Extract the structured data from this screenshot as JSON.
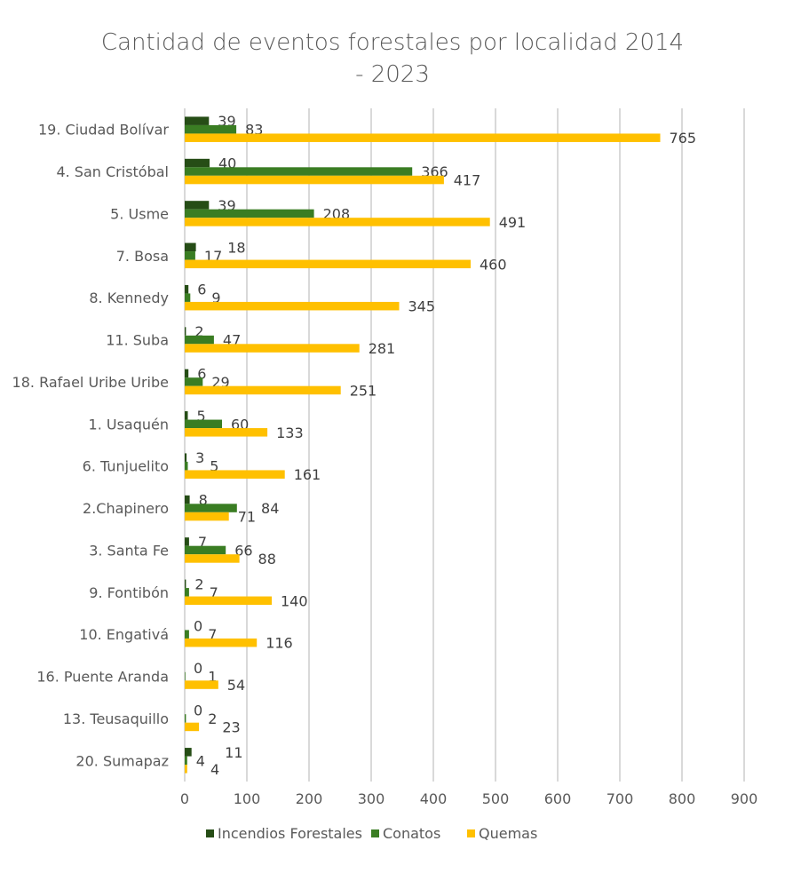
{
  "chart_data": {
    "type": "bar",
    "orientation": "horizontal",
    "title_lines": [
      "Cantidad de eventos forestales por localidad 2014",
      "- 2023"
    ],
    "categories": [
      "19. Ciudad Bolívar",
      "4. San Cristóbal",
      "5. Usme",
      "7. Bosa",
      "8. Kennedy",
      "11. Suba",
      "18. Rafael Uribe Uribe",
      "1. Usaquén",
      "6. Tunjuelito",
      "2.Chapinero",
      "3. Santa Fe",
      "9. Fontibón",
      "10. Engativá",
      "16. Puente Aranda",
      "13. Teusaquillo",
      "20. Sumapaz"
    ],
    "series": [
      {
        "name": "Incendios Forestales",
        "color": "#264d16",
        "values": [
          39,
          40,
          39,
          18,
          6,
          2,
          6,
          5,
          3,
          8,
          7,
          2,
          0,
          0,
          0,
          11
        ]
      },
      {
        "name": "Conatos",
        "color": "#3a7d23",
        "values": [
          83,
          366,
          208,
          17,
          9,
          47,
          29,
          60,
          5,
          84,
          66,
          7,
          7,
          1,
          2,
          4
        ]
      },
      {
        "name": "Quemas",
        "color": "#ffc000",
        "values": [
          765,
          417,
          491,
          460,
          345,
          281,
          251,
          133,
          161,
          71,
          88,
          140,
          116,
          54,
          23,
          4
        ]
      }
    ],
    "xlim": [
      0,
      900
    ],
    "xticks": [
      0,
      100,
      200,
      300,
      400,
      500,
      600,
      700,
      800,
      900
    ],
    "grid": true,
    "legend": "bottom",
    "data_labels": true
  }
}
